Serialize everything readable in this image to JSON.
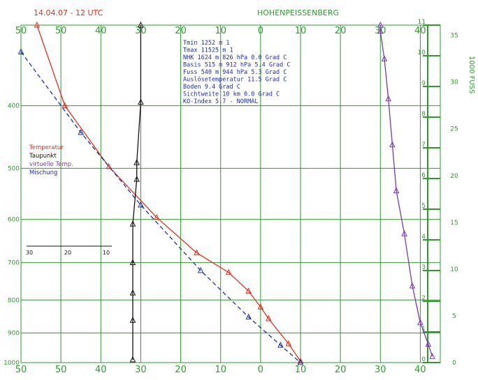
{
  "colors": {
    "grid": "#2e9a2e",
    "temperature": "#e0301e",
    "dewpoint_line": "#1e2fa0",
    "virtual_temp": "#7a3aa8",
    "wind": "#111111",
    "info_text": "#1f2fa0"
  },
  "header": {
    "left_title": "14.04.07 - 12 UTC",
    "right_title": "HOHENPEISSENBERG"
  },
  "info_block": [
    [
      "Tmin",
      "1252 m",
      "1"
    ],
    [
      "Tmax",
      "11525 m",
      "1"
    ],
    [
      "NHK",
      "1624 m",
      "826 hPa",
      "0.0 Grad C"
    ],
    [
      "Basis",
      "515 m",
      "912 hPa",
      "5.4 Grad C"
    ],
    [
      "Fuss",
      "540 m",
      "944 hPa",
      "5.3 Grad C"
    ],
    [
      "Auslösetemperatur",
      "11.5 Grad C"
    ],
    [
      "Boden",
      "9.4 Grad C"
    ],
    [
      "Sichtweite",
      "10 km",
      "0.0 Grad C"
    ],
    [
      "KO-Index",
      "5.7 - NORMAL"
    ]
  ],
  "legend": [
    {
      "label": "Temperatur",
      "color": "#e0301e"
    },
    {
      "label": "Taupunkt",
      "color": "#111111"
    },
    {
      "label": "virtuelle Temp.",
      "color": "#7a3aa8"
    },
    {
      "label": "Mischung",
      "color": "#1e2fa0"
    }
  ],
  "right_axis_label": "1000 FUSS",
  "chart_data": {
    "type": "line",
    "x_axis_top_ticks": [
      "50",
      "50",
      "40",
      "30",
      "20",
      "10",
      "0",
      "10",
      "20",
      "30",
      "40"
    ],
    "x_axis_bottom_ticks": [
      "50",
      "50",
      "40",
      "30",
      "20",
      "10",
      "0",
      "10",
      "20",
      "30",
      "40"
    ],
    "x_axis_top_values": [
      -60,
      -50,
      -40,
      -30,
      -20,
      -10,
      0,
      10,
      20,
      30,
      40
    ],
    "x_axis_bottom_values": [
      -60,
      -50,
      -40,
      -30,
      -20,
      -10,
      0,
      10,
      20,
      30,
      40
    ],
    "xlim": [
      -60,
      45
    ],
    "y_axis_left_ticks": [
      "400",
      "500",
      "600",
      "700",
      "800",
      "900",
      "1000"
    ],
    "y_axis_left_values": [
      400,
      500,
      600,
      700,
      800,
      900,
      1000
    ],
    "y_axis_right_km_ticks": [
      "0",
      "1",
      "2",
      "3",
      "4",
      "5",
      "6",
      "7",
      "8",
      "9",
      "10",
      "11"
    ],
    "y_axis_right_kft_ticks": [
      "0",
      "5",
      "10",
      "15",
      "20",
      "25",
      "30",
      "35"
    ],
    "inner_scale_ticks": [
      "30",
      "20",
      "10"
    ],
    "series": [
      {
        "name": "Temperatur",
        "color": "#e0301e",
        "points": [
          [
            -56,
            300
          ],
          [
            -49,
            400
          ],
          [
            -38,
            497
          ],
          [
            -26,
            596
          ],
          [
            -16,
            676
          ],
          [
            -8,
            725
          ],
          [
            -3,
            775
          ],
          [
            0,
            820
          ],
          [
            2,
            855
          ],
          [
            7,
            935
          ],
          [
            10,
            995
          ]
        ]
      },
      {
        "name": "Mischung",
        "color": "#1e2fa0",
        "points": [
          [
            -60,
            330
          ],
          [
            -45,
            440
          ],
          [
            -30,
            570
          ],
          [
            -15,
            720
          ],
          [
            -3,
            850
          ],
          [
            5,
            940
          ],
          [
            10,
            1000
          ]
        ]
      },
      {
        "name": "virtuelle Temp.",
        "color": "#7a3aa8",
        "points": [
          [
            43,
            0.2
          ],
          [
            42,
            0.6
          ],
          [
            40,
            1.3
          ],
          [
            38,
            2.5
          ],
          [
            36,
            4.2
          ],
          [
            34,
            5.6
          ],
          [
            33,
            7.1
          ],
          [
            32,
            8.6
          ],
          [
            31,
            9.9
          ],
          [
            30,
            10.8
          ],
          [
            30,
            11.0
          ]
        ]
      },
      {
        "name": "Taupunkt",
        "color": "#111111",
        "points": [
          [
            -30,
            300
          ],
          [
            -30,
            395
          ],
          [
            -31,
            490
          ],
          [
            -31,
            520
          ],
          [
            -32,
            610
          ],
          [
            -32,
            700
          ],
          [
            -32,
            780
          ],
          [
            -32,
            860
          ],
          [
            -32,
            990
          ]
        ]
      }
    ]
  }
}
